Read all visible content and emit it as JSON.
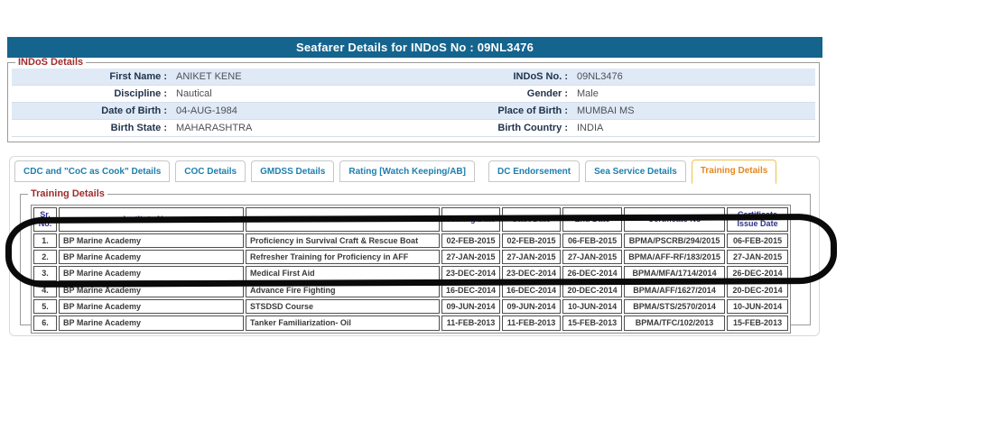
{
  "title": "Seafarer Details for INDoS No : 09NL3476",
  "indos_section": {
    "legend": "INDoS Details",
    "rows": [
      {
        "left_label": "First Name :",
        "left_value": "ANIKET KENE",
        "right_label": "INDoS No. :",
        "right_value": "09NL3476",
        "shaded": true
      },
      {
        "left_label": "Discipline :",
        "left_value": "Nautical",
        "right_label": "Gender :",
        "right_value": "Male",
        "shaded": false
      },
      {
        "left_label": "Date of Birth :",
        "left_value": "04-AUG-1984",
        "right_label": "Place of Birth :",
        "right_value": "MUMBAI MS",
        "shaded": true
      },
      {
        "left_label": "Birth State :",
        "left_value": "MAHARASHTRA",
        "right_label": "Birth Country :",
        "right_value": "INDIA",
        "shaded": false
      }
    ]
  },
  "tabs": [
    {
      "label": "CDC and \"CoC as Cook\" Details",
      "active": false
    },
    {
      "label": "COC Details",
      "active": false
    },
    {
      "label": "GMDSS Details",
      "active": false
    },
    {
      "label": "Rating [Watch Keeping/AB]",
      "active": false
    },
    {
      "label": "DC Endorsement",
      "active": false,
      "gap_before": true
    },
    {
      "label": "Sea Service Details",
      "active": false
    },
    {
      "label": "Training Details",
      "active": true
    }
  ],
  "training_section": {
    "legend": "Training Details",
    "columns": [
      "Sr. No.",
      "Institute Name",
      "Course Name",
      "Joining Date",
      "Start Date",
      "End Date",
      "Certificate No",
      "Certificate Issue Date"
    ],
    "rows": [
      [
        "1.",
        "BP Marine Academy",
        "Proficiency in Survival Craft & Rescue Boat",
        "02-FEB-2015",
        "02-FEB-2015",
        "06-FEB-2015",
        "BPMA/PSCRB/294/2015",
        "06-FEB-2015"
      ],
      [
        "2.",
        "BP Marine Academy",
        "Refresher Training for Proficiency in AFF",
        "27-JAN-2015",
        "27-JAN-2015",
        "27-JAN-2015",
        "BPMA/AFF-RF/183/2015",
        "27-JAN-2015"
      ],
      [
        "3.",
        "BP Marine Academy",
        "Medical First Aid",
        "23-DEC-2014",
        "23-DEC-2014",
        "26-DEC-2014",
        "BPMA/MFA/1714/2014",
        "26-DEC-2014"
      ],
      [
        "4.",
        "BP Marine Academy",
        "Advance Fire Fighting",
        "16-DEC-2014",
        "16-DEC-2014",
        "20-DEC-2014",
        "BPMA/AFF/1627/2014",
        "20-DEC-2014"
      ],
      [
        "5.",
        "BP Marine Academy",
        "STSDSD Course",
        "09-JUN-2014",
        "09-JUN-2014",
        "10-JUN-2014",
        "BPMA/STS/2570/2014",
        "10-JUN-2014"
      ],
      [
        "6.",
        "BP Marine Academy",
        "Tanker Familiarization- Oil",
        "11-FEB-2013",
        "11-FEB-2013",
        "15-FEB-2013",
        "BPMA/TFC/102/2013",
        "15-FEB-2013"
      ]
    ]
  },
  "annotation": {
    "shape": "hand-drawn oval highlighting table rows 1-4",
    "color": "#0a0a0a"
  },
  "colors": {
    "title_bar_bg": "#15648e",
    "title_text": "#ffffff",
    "legend_red": "#9e2d2d",
    "shaded_row_bg": "#dfeaf6",
    "tab_text_blue": "#1d7fae",
    "active_tab_text": "#e5861f",
    "active_tab_border": "#f0c14b",
    "table_header_text": "#2b2f8a"
  }
}
